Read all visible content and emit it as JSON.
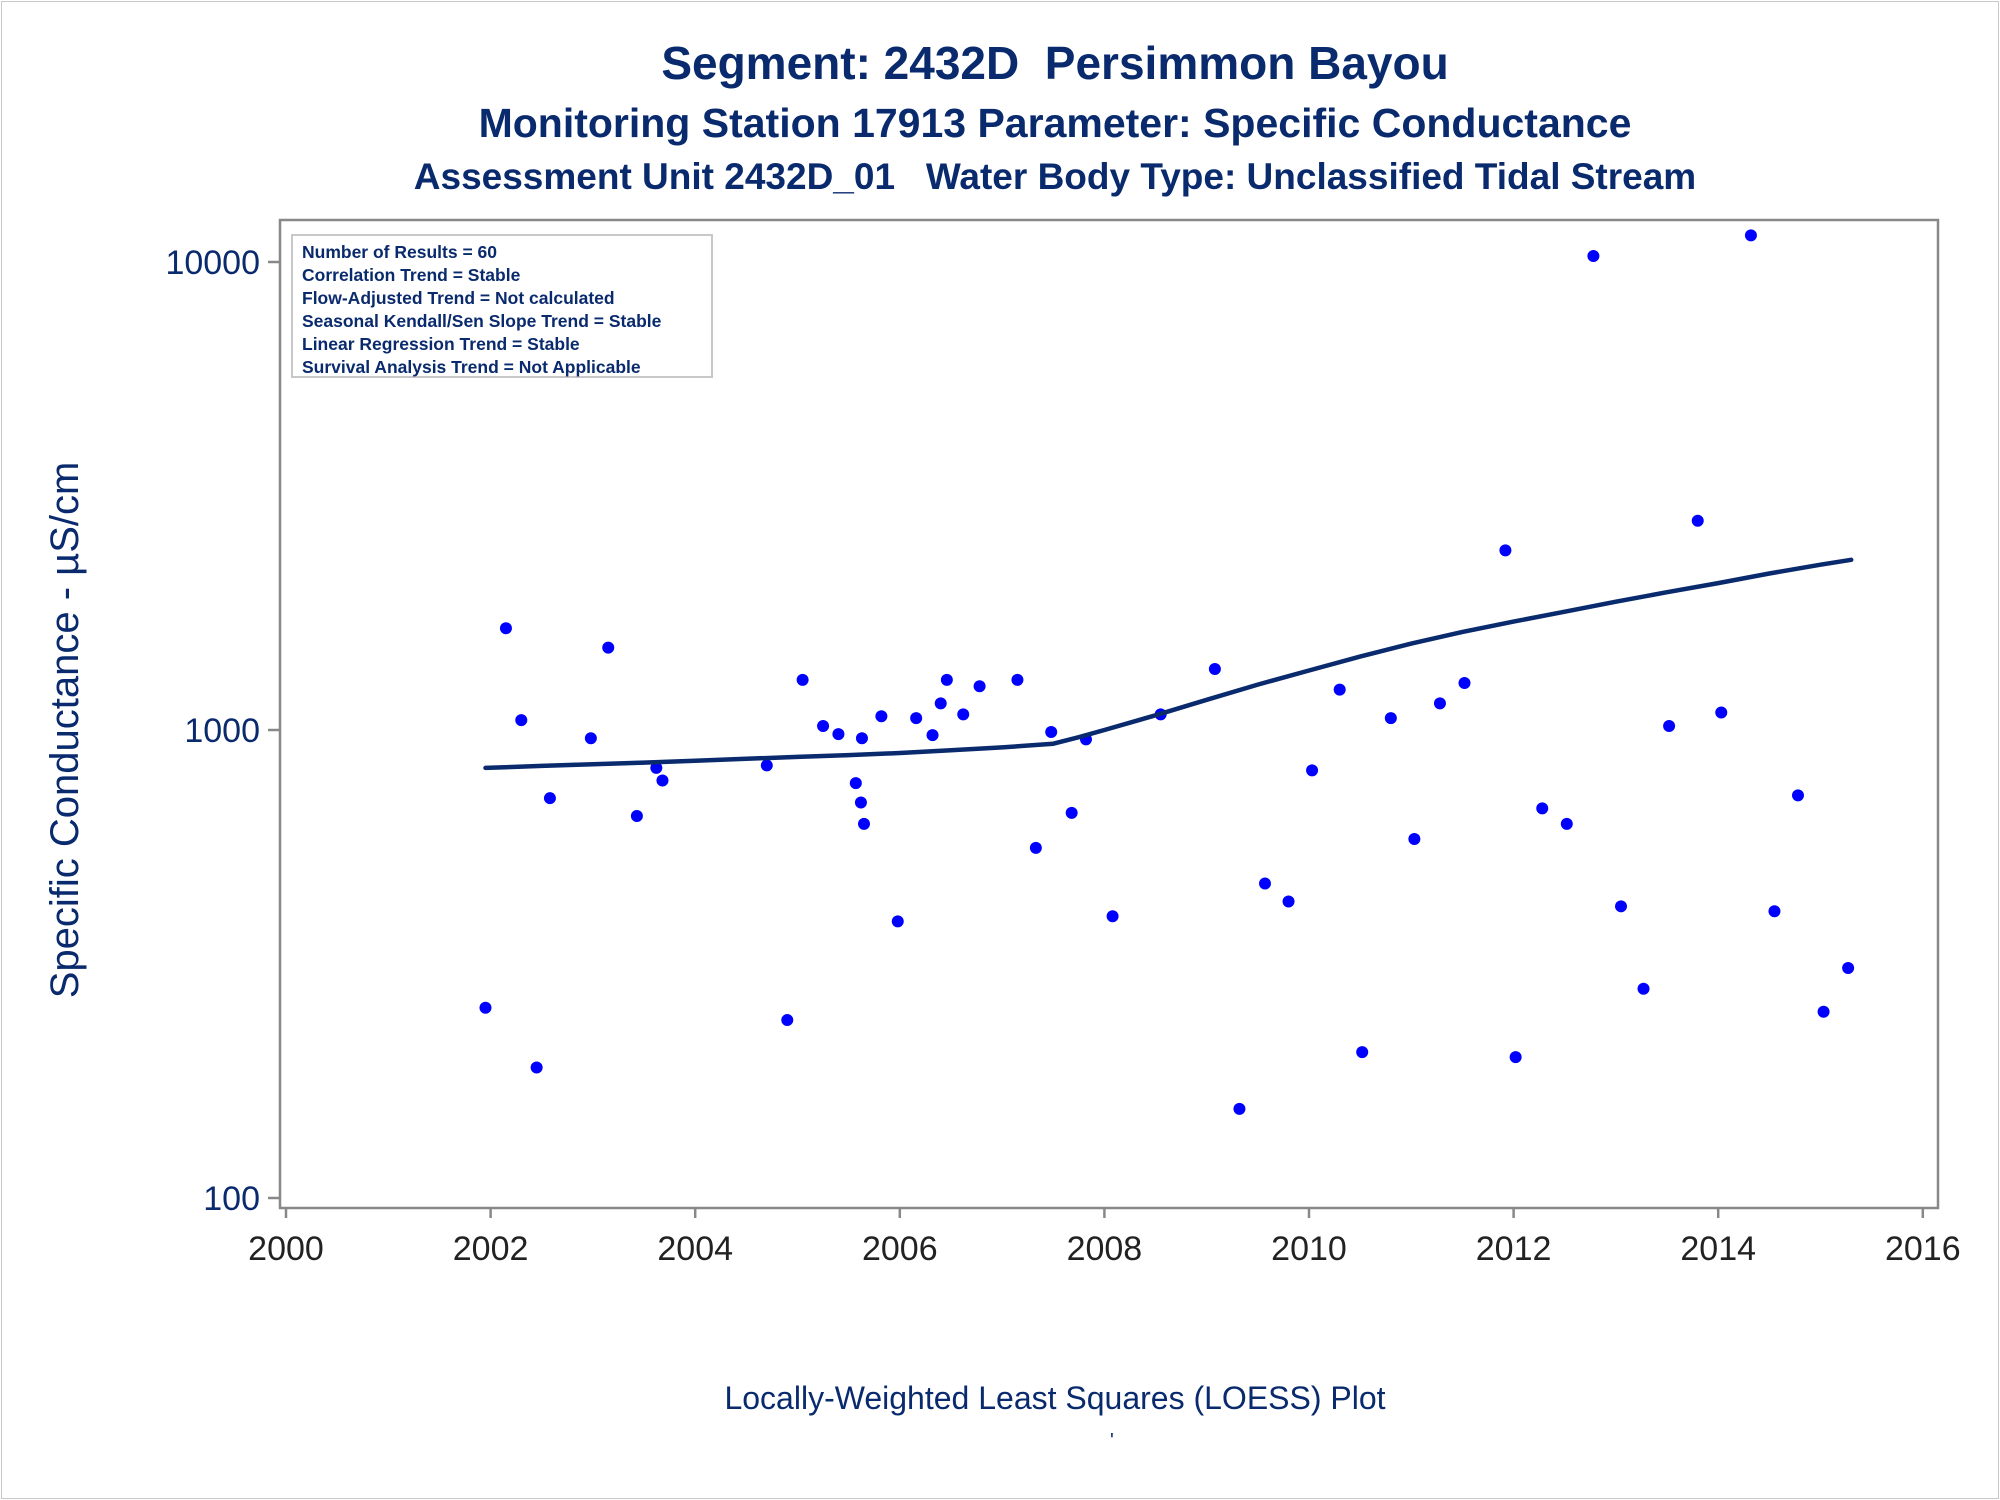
{
  "titles": {
    "line1": "Segment: 2432D  Persimmon Bayou",
    "line2": "Monitoring Station 17913 Parameter: Specific Conductance",
    "line3": "Assessment Unit 2432D_01   Water Body Type: Unclassified Tidal Stream"
  },
  "stats_box": {
    "lines": [
      "Number of Results = 60",
      "Correlation Trend = Stable",
      "Flow-Adjusted Trend = Not calculated",
      "Seasonal Kendall/Sen Slope Trend = Stable",
      "Linear Regression Trend = Stable",
      "Survival Analysis Trend = Not Applicable"
    ]
  },
  "footnote": "Locally-Weighted Least Squares (LOESS) Plot",
  "footnote_mark": "'",
  "colors": {
    "text": "#0a2a6e",
    "points": "#0000ff",
    "loess_line": "#0a2a6e",
    "axis": "#888888"
  },
  "chart_data": {
    "type": "scatter",
    "ylabel": "Specific Conductance -  µS/cm",
    "xlabel": "",
    "y_scale": "log",
    "xlim": [
      2000,
      2016
    ],
    "ylim": [
      100,
      13000
    ],
    "x_ticks": [
      "2000",
      "2002",
      "2004",
      "2006",
      "2008",
      "2010",
      "2012",
      "2014",
      "2016"
    ],
    "y_ticks": [
      "100",
      "1000",
      "10000"
    ],
    "grid": false,
    "series": [
      {
        "kind": "points",
        "points": [
          [
            2001.95,
            255
          ],
          [
            2002.15,
            1650
          ],
          [
            2002.3,
            1050
          ],
          [
            2002.45,
            190
          ],
          [
            2002.58,
            715
          ],
          [
            2002.98,
            960
          ],
          [
            2003.15,
            1500
          ],
          [
            2003.43,
            655
          ],
          [
            2003.62,
            830
          ],
          [
            2003.68,
            780
          ],
          [
            2004.7,
            840
          ],
          [
            2004.9,
            240
          ],
          [
            2005.05,
            1280
          ],
          [
            2005.25,
            1020
          ],
          [
            2005.4,
            980
          ],
          [
            2005.57,
            770
          ],
          [
            2005.62,
            700
          ],
          [
            2005.65,
            630
          ],
          [
            2005.63,
            960
          ],
          [
            2005.82,
            1070
          ],
          [
            2005.98,
            390
          ],
          [
            2006.16,
            1060
          ],
          [
            2006.32,
            975
          ],
          [
            2006.4,
            1140
          ],
          [
            2006.46,
            1280
          ],
          [
            2006.62,
            1080
          ],
          [
            2006.78,
            1240
          ],
          [
            2007.15,
            1280
          ],
          [
            2007.33,
            560
          ],
          [
            2007.48,
            990
          ],
          [
            2007.68,
            665
          ],
          [
            2007.82,
            955
          ],
          [
            2008.08,
            400
          ],
          [
            2008.55,
            1080
          ],
          [
            2009.08,
            1350
          ],
          [
            2009.32,
            155
          ],
          [
            2009.57,
            470
          ],
          [
            2009.8,
            430
          ],
          [
            2010.03,
            820
          ],
          [
            2010.3,
            1220
          ],
          [
            2010.52,
            205
          ],
          [
            2010.8,
            1060
          ],
          [
            2011.03,
            585
          ],
          [
            2011.28,
            1140
          ],
          [
            2011.52,
            1260
          ],
          [
            2011.92,
            2420
          ],
          [
            2012.02,
            200
          ],
          [
            2012.28,
            680
          ],
          [
            2012.52,
            630
          ],
          [
            2012.78,
            10300
          ],
          [
            2013.05,
            420
          ],
          [
            2013.27,
            280
          ],
          [
            2013.52,
            1020
          ],
          [
            2013.8,
            2800
          ],
          [
            2014.03,
            1090
          ],
          [
            2014.32,
            11400
          ],
          [
            2014.55,
            410
          ],
          [
            2014.78,
            725
          ],
          [
            2015.03,
            250
          ],
          [
            2015.27,
            310
          ]
        ]
      },
      {
        "kind": "loess_line",
        "points": [
          [
            2001.95,
            830
          ],
          [
            2002.5,
            838
          ],
          [
            2003.0,
            845
          ],
          [
            2003.5,
            852
          ],
          [
            2004.0,
            860
          ],
          [
            2004.5,
            868
          ],
          [
            2005.0,
            876
          ],
          [
            2005.5,
            884
          ],
          [
            2006.0,
            893
          ],
          [
            2006.5,
            905
          ],
          [
            2007.0,
            918
          ],
          [
            2007.5,
            935
          ],
          [
            2007.75,
            965
          ],
          [
            2008.0,
            1000
          ],
          [
            2008.5,
            1075
          ],
          [
            2009.0,
            1160
          ],
          [
            2009.5,
            1250
          ],
          [
            2010.0,
            1340
          ],
          [
            2010.5,
            1435
          ],
          [
            2011.0,
            1530
          ],
          [
            2011.5,
            1620
          ],
          [
            2012.0,
            1705
          ],
          [
            2012.5,
            1790
          ],
          [
            2013.0,
            1880
          ],
          [
            2013.5,
            1970
          ],
          [
            2014.0,
            2060
          ],
          [
            2014.5,
            2160
          ],
          [
            2015.0,
            2255
          ],
          [
            2015.3,
            2310
          ]
        ]
      }
    ]
  }
}
